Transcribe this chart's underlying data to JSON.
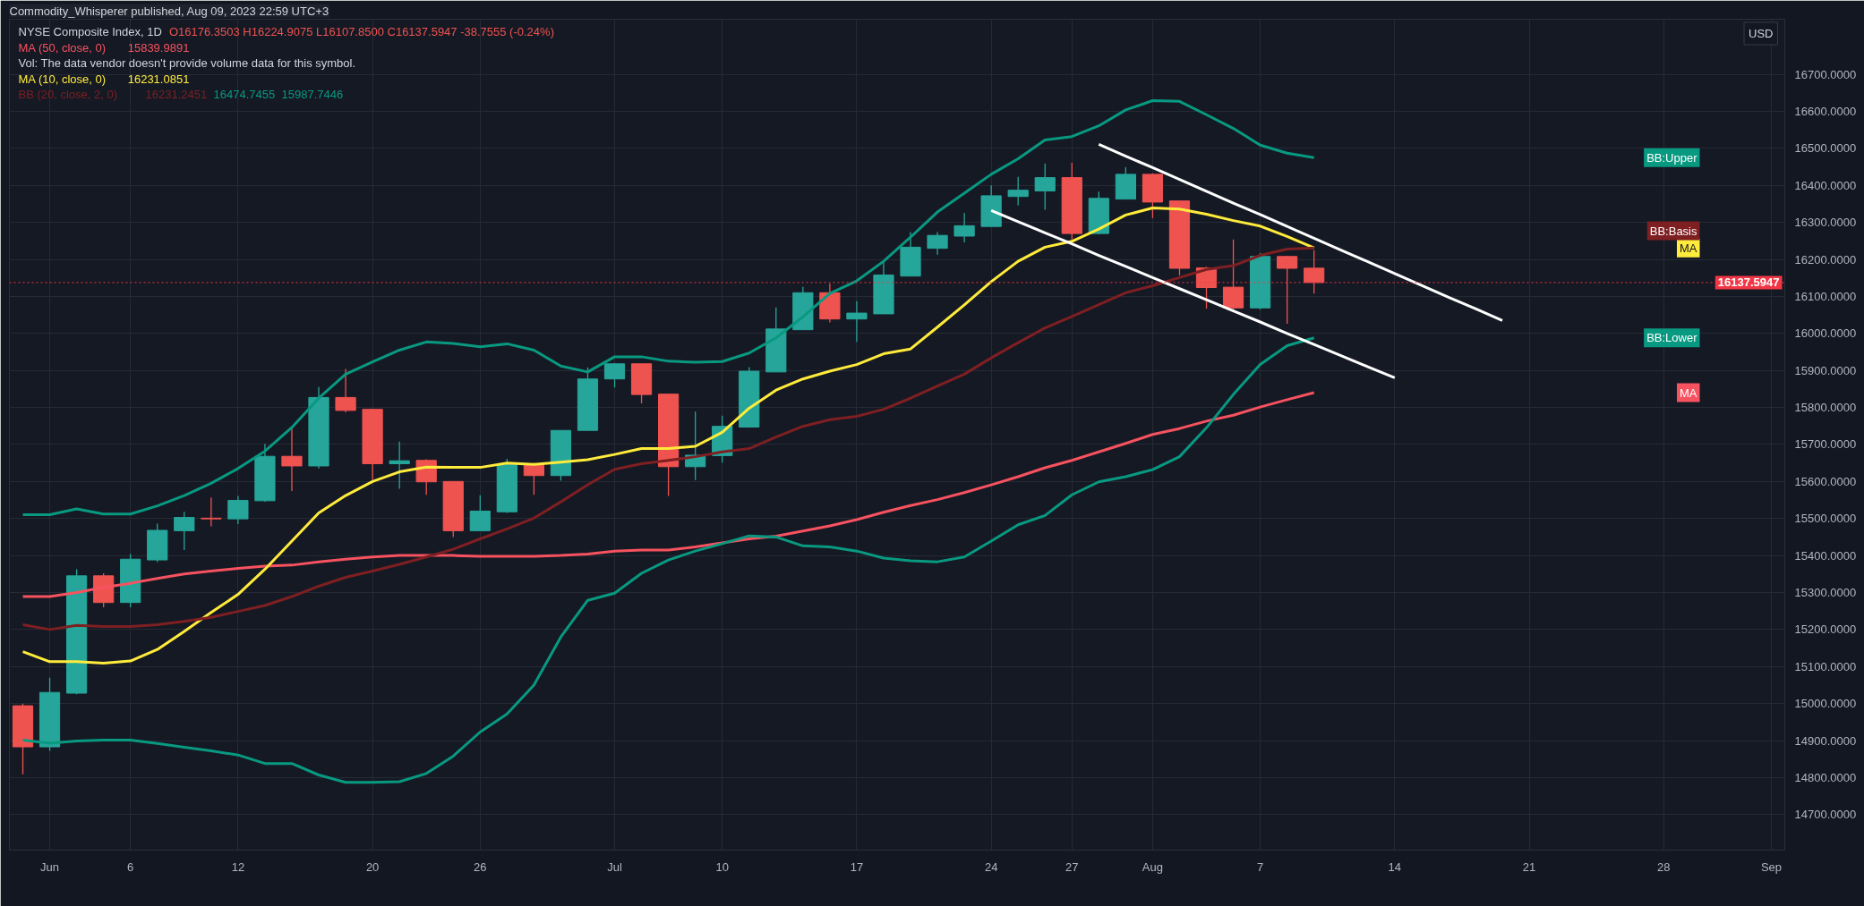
{
  "chart_data": {
    "type": "candlestick",
    "title": "NYSE Composite Index, 1D",
    "subtitle": "O16176.3503 H16224.9075 L16107.8500 C16137.5947 -38.7555 (-0.24%)",
    "annotations": [
      "Commodity_Whisperer published, Aug 09, 2023 22:59 UTC+3",
      "Vol: The data vendor doesn't provide volume data for this symbol.",
      "USD",
      "MA",
      "MA",
      "BB:Basis",
      "BB:Upper",
      "BB:Lower",
      "15839.9891",
      "16231.0851",
      "16231.2451",
      "16474.7455",
      "15987.7446"
    ],
    "categories": [
      null,
      "Jun",
      null,
      null,
      "6",
      null,
      null,
      null,
      "12",
      null,
      null,
      null,
      null,
      "20",
      null,
      null,
      null,
      "26",
      null,
      null,
      null,
      null,
      "Jul",
      null,
      null,
      null,
      "10",
      null,
      null,
      null,
      null,
      "17",
      null,
      null,
      null,
      null,
      "24",
      null,
      null,
      "27",
      null,
      null,
      "Aug",
      null,
      null,
      null,
      "7",
      null,
      null,
      null,
      null,
      "14",
      null,
      null,
      null,
      null,
      "21",
      null,
      null,
      null,
      null,
      "28",
      null,
      null,
      null,
      "Sep"
    ],
    "ohlc": [
      [
        14994,
        15000,
        14809,
        14883
      ],
      [
        14883,
        15070,
        14872,
        15030
      ],
      [
        15028,
        15363,
        15025,
        15345
      ],
      [
        15345,
        15352,
        15260,
        15273
      ],
      [
        15273,
        15404,
        15260,
        15390
      ],
      [
        15388,
        15486,
        15382,
        15468
      ],
      [
        15467,
        15518,
        15415,
        15503
      ],
      [
        15501,
        15557,
        15479,
        15499
      ],
      [
        15499,
        15561,
        15485,
        15549
      ],
      [
        15548,
        15702,
        15545,
        15668
      ],
      [
        15668,
        15747,
        15574,
        15642
      ],
      [
        15642,
        15855,
        15635,
        15827
      ],
      [
        15827,
        15904,
        15787,
        15792
      ],
      [
        15795,
        15795,
        15604,
        15648
      ],
      [
        15648,
        15708,
        15580,
        15656
      ],
      [
        15657,
        15660,
        15564,
        15599
      ],
      [
        15600,
        15600,
        15450,
        15467
      ],
      [
        15467,
        15563,
        15467,
        15520
      ],
      [
        15518,
        15661,
        15515,
        15646
      ],
      [
        15646,
        15650,
        15564,
        15616
      ],
      [
        15616,
        15738,
        15602,
        15738
      ],
      [
        15738,
        15908,
        15738,
        15877
      ],
      [
        15877,
        15920,
        15854,
        15918
      ],
      [
        15918,
        15918,
        15811,
        15835
      ],
      [
        15836,
        15836,
        15561,
        15640
      ],
      [
        15640,
        15789,
        15604,
        15671
      ],
      [
        15670,
        15778,
        15651,
        15749
      ],
      [
        15747,
        15909,
        15745,
        15898
      ],
      [
        15896,
        16070,
        15896,
        16012
      ],
      [
        16010,
        16126,
        16010,
        16110
      ],
      [
        16110,
        16134,
        16030,
        16039
      ],
      [
        16039,
        16087,
        15977,
        16055
      ],
      [
        16053,
        16195,
        16053,
        16158
      ],
      [
        16155,
        16274,
        16155,
        16233
      ],
      [
        16230,
        16274,
        16213,
        16265
      ],
      [
        16263,
        16325,
        16246,
        16291
      ],
      [
        16289,
        16400,
        16289,
        16372
      ],
      [
        16370,
        16423,
        16346,
        16387
      ],
      [
        16385,
        16459,
        16334,
        16421
      ],
      [
        16421,
        16461,
        16254,
        16270
      ],
      [
        16270,
        16383,
        16268,
        16365
      ],
      [
        16363,
        16449,
        16363,
        16430
      ],
      [
        16430,
        16432,
        16312,
        16355
      ],
      [
        16358,
        16358,
        16157,
        16176
      ],
      [
        16177,
        16180,
        16067,
        16124
      ],
      [
        16125,
        16254,
        16060,
        16069
      ],
      [
        16069,
        16217,
        16065,
        16208
      ],
      [
        16208,
        16210,
        16026,
        16176
      ],
      [
        16176.3503,
        16224.9075,
        16107.85,
        16137.5947
      ],
      null,
      null,
      null,
      null,
      null,
      null,
      null,
      null,
      null,
      null,
      null,
      null,
      null,
      null,
      null,
      null,
      null
    ],
    "colors": [
      "#ef5350",
      "#26a69a",
      "#26a69a",
      "#ef5350",
      "#26a69a",
      "#26a69a",
      "#26a69a",
      "#ef5350",
      "#26a69a",
      "#26a69a",
      "#ef5350",
      "#26a69a",
      "#ef5350",
      "#ef5350",
      "#26a69a",
      "#ef5350",
      "#ef5350",
      "#26a69a",
      "#26a69a",
      "#ef5350",
      "#26a69a",
      "#26a69a",
      "#26a69a",
      "#ef5350",
      "#ef5350",
      "#26a69a",
      "#26a69a",
      "#26a69a",
      "#26a69a",
      "#26a69a",
      "#ef5350",
      "#26a69a",
      "#26a69a",
      "#26a69a",
      "#26a69a",
      "#26a69a",
      "#26a69a",
      "#26a69a",
      "#26a69a",
      "#ef5350",
      "#26a69a",
      "#26a69a",
      "#ef5350",
      "#ef5350",
      "#ef5350",
      "#ef5350",
      "#26a69a",
      "#ef5350",
      "#ef5350",
      null,
      null,
      null,
      null,
      null,
      null,
      null,
      null,
      null,
      null,
      null,
      null,
      null,
      null,
      null,
      null,
      null
    ],
    "series": [
      {
        "name": "MA (50, close, 0)",
        "type": "line",
        "color": "#f7525f",
        "values": [
          15289,
          15289,
          15300,
          15314,
          15325,
          15338,
          15350,
          15358,
          15365,
          15371,
          15374,
          15383,
          15390,
          15396,
          15400,
          15400,
          15400,
          15398,
          15398,
          15398,
          15400,
          15404,
          15412,
          15415,
          15415,
          15423,
          15434,
          15445,
          15452,
          15466,
          15480,
          15497,
          15517,
          15535,
          15551,
          15570,
          15591,
          15613,
          15637,
          15657,
          15680,
          15703,
          15727,
          15743,
          15763,
          15779,
          15801,
          15821,
          15840,
          null,
          null,
          null,
          null,
          null,
          null,
          null,
          null,
          null,
          null,
          null,
          null,
          null,
          null,
          null,
          null,
          null
        ]
      },
      {
        "name": "MA (10, close, 0)",
        "type": "line",
        "color": "#ffeb3b",
        "values": [
          15140,
          15113,
          15113,
          15109,
          15115,
          15146,
          15195,
          15246,
          15295,
          15363,
          15439,
          15515,
          15562,
          15600,
          15626,
          15639,
          15638,
          15638,
          15650,
          15646,
          15652,
          15659,
          15673,
          15689,
          15689,
          15695,
          15733,
          15798,
          15847,
          15877,
          15898,
          15916,
          15945,
          15958,
          16017,
          16077,
          16140,
          16195,
          16233,
          16249,
          16282,
          16320,
          16339,
          16336,
          16322,
          16305,
          16290,
          16262,
          16231,
          null,
          null,
          null,
          null,
          null,
          null,
          null,
          null,
          null,
          null,
          null,
          null,
          null,
          null,
          null,
          null,
          null
        ]
      },
      {
        "name": "BB (20, close, 2, 0)",
        "type": "line",
        "color": "#7e1f22",
        "values": [
          15213,
          15200,
          15211,
          15208,
          15208,
          15213,
          15222,
          15233,
          15249,
          15265,
          15289,
          15317,
          15341,
          15358,
          15376,
          15396,
          15417,
          15445,
          15472,
          15501,
          15545,
          15591,
          15633,
          15648,
          15657,
          15667,
          15680,
          15689,
          15720,
          15749,
          15767,
          15776,
          15795,
          15825,
          15858,
          15890,
          15934,
          15975,
          16015,
          16046,
          16078,
          16110,
          16129,
          16151,
          16173,
          16183,
          16211,
          16228,
          16231,
          null,
          null,
          null,
          null,
          null,
          null,
          null,
          null,
          null,
          null,
          null,
          null,
          null,
          null,
          null,
          null,
          null
        ]
      },
      {
        "type": "line",
        "color": "#089981",
        "values": [
          15510,
          15510,
          15526,
          15512,
          15512,
          15534,
          15562,
          15595,
          15635,
          15682,
          15746,
          15825,
          15890,
          15923,
          15955,
          15977,
          15973,
          15964,
          15972,
          15955,
          15912,
          15896,
          15937,
          15937,
          15925,
          15922,
          15924,
          15947,
          15988,
          16045,
          16108,
          16142,
          16195,
          16260,
          16328,
          16379,
          16430,
          16472,
          16523,
          16532,
          16561,
          16604,
          16629,
          16627,
          16591,
          16554,
          16509,
          16487,
          16475,
          null,
          null,
          null,
          null,
          null,
          null,
          null,
          null,
          null,
          null,
          null,
          null,
          null,
          null,
          null,
          null,
          null
        ]
      },
      {
        "type": "line",
        "color": "#089981",
        "values": [
          14901,
          14893,
          14899,
          14901,
          14901,
          14892,
          14882,
          14872,
          14861,
          14838,
          14838,
          14807,
          14787,
          14787,
          14789,
          14811,
          14858,
          14923,
          14972,
          15050,
          15180,
          15279,
          15298,
          15352,
          15388,
          15412,
          15432,
          15453,
          15450,
          15426,
          15423,
          15412,
          15393,
          15386,
          15383,
          15396,
          15439,
          15483,
          15508,
          15564,
          15599,
          15613,
          15632,
          15667,
          15745,
          15835,
          15916,
          15967,
          15988,
          null,
          null,
          null,
          null,
          null,
          null,
          null,
          null,
          null,
          null,
          null,
          null,
          null,
          null,
          null,
          null,
          null
        ]
      },
      {
        "type": "line",
        "color": "#ffffff",
        "values": [
          null,
          null,
          null,
          null,
          null,
          null,
          null,
          null,
          null,
          null,
          null,
          null,
          null,
          null,
          null,
          null,
          null,
          null,
          null,
          null,
          null,
          null,
          null,
          null,
          null,
          null,
          null,
          null,
          null,
          null,
          null,
          null,
          null,
          null,
          null,
          null,
          null,
          null,
          null,
          null,
          16511,
          16479,
          16448,
          16416,
          16384,
          16352,
          16321,
          16289,
          16257,
          16225,
          16194,
          16162,
          16130,
          16098,
          16067,
          16035,
          null,
          null,
          null,
          null,
          null,
          null,
          null,
          null,
          null,
          null
        ]
      },
      {
        "type": "line",
        "color": "#ffffff",
        "values": [
          null,
          null,
          null,
          null,
          null,
          null,
          null,
          null,
          null,
          null,
          null,
          null,
          null,
          null,
          null,
          null,
          null,
          null,
          null,
          null,
          null,
          null,
          null,
          null,
          null,
          null,
          null,
          null,
          null,
          null,
          null,
          null,
          null,
          null,
          null,
          null,
          16332,
          16302,
          16272,
          16242,
          16211,
          16181,
          16151,
          16121,
          16091,
          16061,
          16031,
          16000,
          15970,
          15940,
          15910,
          15880,
          null,
          null,
          null,
          null,
          null,
          null,
          null,
          null,
          null,
          null,
          null,
          null,
          null,
          null
        ]
      }
    ],
    "ref_lines": [
      {
        "axis": "y",
        "value": 16137.5947,
        "label": "16137.5947",
        "color": "#f23645",
        "line_style": "dotted"
      }
    ],
    "ylim": [
      14604,
      16849
    ],
    "yticks": [
      {
        "value": 14700,
        "label": "14700.0000"
      },
      {
        "value": 14800,
        "label": "14800.0000"
      },
      {
        "value": 14900,
        "label": "14900.0000"
      },
      {
        "value": 15000,
        "label": "15000.0000"
      },
      {
        "value": 15100,
        "label": "15100.0000"
      },
      {
        "value": 15200,
        "label": "15200.0000"
      },
      {
        "value": 15300,
        "label": "15300.0000"
      },
      {
        "value": 15400,
        "label": "15400.0000"
      },
      {
        "value": 15500,
        "label": "15500.0000"
      },
      {
        "value": 15600,
        "label": "15600.0000"
      },
      {
        "value": 15700,
        "label": "15700.0000"
      },
      {
        "value": 15800,
        "label": "15800.0000"
      },
      {
        "value": 15900,
        "label": "15900.0000"
      },
      {
        "value": 16000,
        "label": "16000.0000"
      },
      {
        "value": 16100,
        "label": "16100.0000"
      },
      {
        "value": 16200,
        "label": "16200.0000"
      },
      {
        "value": 16300,
        "label": "16300.0000"
      },
      {
        "value": 16400,
        "label": "16400.0000"
      },
      {
        "value": 16500,
        "label": "16500.0000"
      },
      {
        "value": 16600,
        "label": "16600.0000"
      },
      {
        "value": 16700,
        "label": "16700.0000"
      }
    ],
    "grid": true,
    "legend": "top left"
  }
}
